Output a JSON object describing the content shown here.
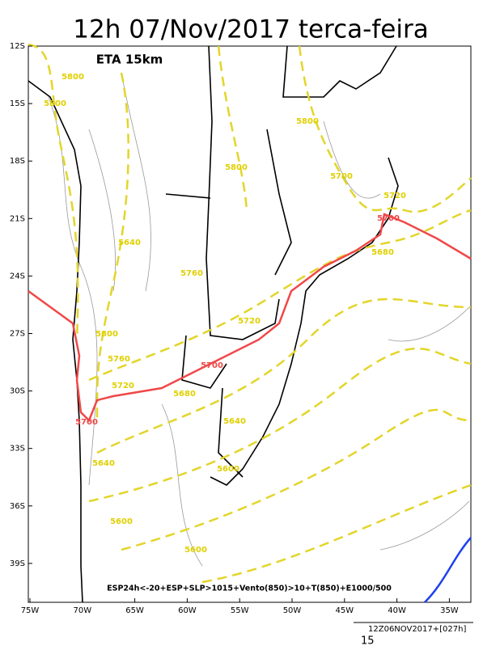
{
  "title": "12h 07/Nov/2017 terca-feira",
  "model": "ETA 15km",
  "lat_labels": [
    "12S",
    "15S",
    "18S",
    "21S",
    "24S",
    "27S",
    "30S",
    "33S",
    "36S",
    "39S"
  ],
  "lon_labels": [
    "75W",
    "70W",
    "65W",
    "60W",
    "55W",
    "50W",
    "45W",
    "40W",
    "35W"
  ],
  "contour_labels": [
    "5800",
    "5800",
    "5800",
    "5800",
    "5800",
    "5700",
    "5720",
    "5700",
    "5720",
    "5760",
    "5760",
    "5720",
    "5700",
    "5680",
    "5680",
    "5640",
    "5640",
    "5640",
    "5600",
    "5600",
    "5600",
    "5700"
  ],
  "caption": "ESP24h<-20+ESP+SLP>1015+Vento(850)>10+T(850)+E1000/500",
  "footer": {
    "run": "12Z06NOV2017+[027h]",
    "scale": "15"
  }
}
